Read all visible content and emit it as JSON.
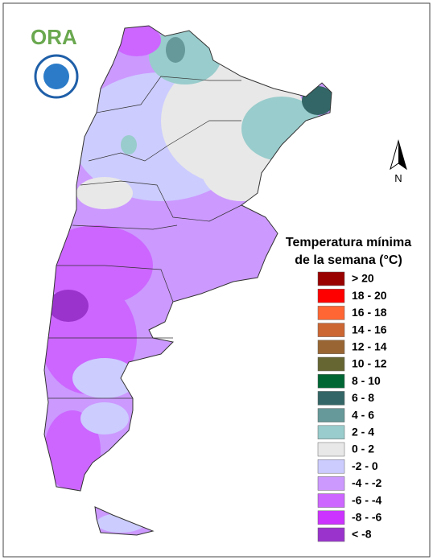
{
  "logo": "ORA",
  "north": "N",
  "legend": {
    "title": [
      "Temperatura mínima",
      "de la semana (°C)"
    ],
    "items": [
      {
        "label": "> 20",
        "color": "#990000"
      },
      {
        "label": "18 - 20",
        "color": "#ff0000"
      },
      {
        "label": "16 - 18",
        "color": "#ff6633"
      },
      {
        "label": "14 - 16",
        "color": "#cc6633"
      },
      {
        "label": "12 - 14",
        "color": "#996633"
      },
      {
        "label": "10 - 12",
        "color": "#666633"
      },
      {
        "label": "8 - 10",
        "color": "#006633"
      },
      {
        "label": "6 - 8",
        "color": "#336666"
      },
      {
        "label": "4 - 6",
        "color": "#669999"
      },
      {
        "label": "2 - 4",
        "color": "#99cccc"
      },
      {
        "label": "0 - 2",
        "color": "#e8e8e8"
      },
      {
        "label": "-2 - 0",
        "color": "#ccccff"
      },
      {
        "label": "-4 - -2",
        "color": "#cc99ff"
      },
      {
        "label": "-6 - -4",
        "color": "#cc66ff"
      },
      {
        "label": "-8 - -6",
        "color": "#cc33ff"
      },
      {
        "label": "< -8",
        "color": "#9933cc"
      }
    ]
  }
}
